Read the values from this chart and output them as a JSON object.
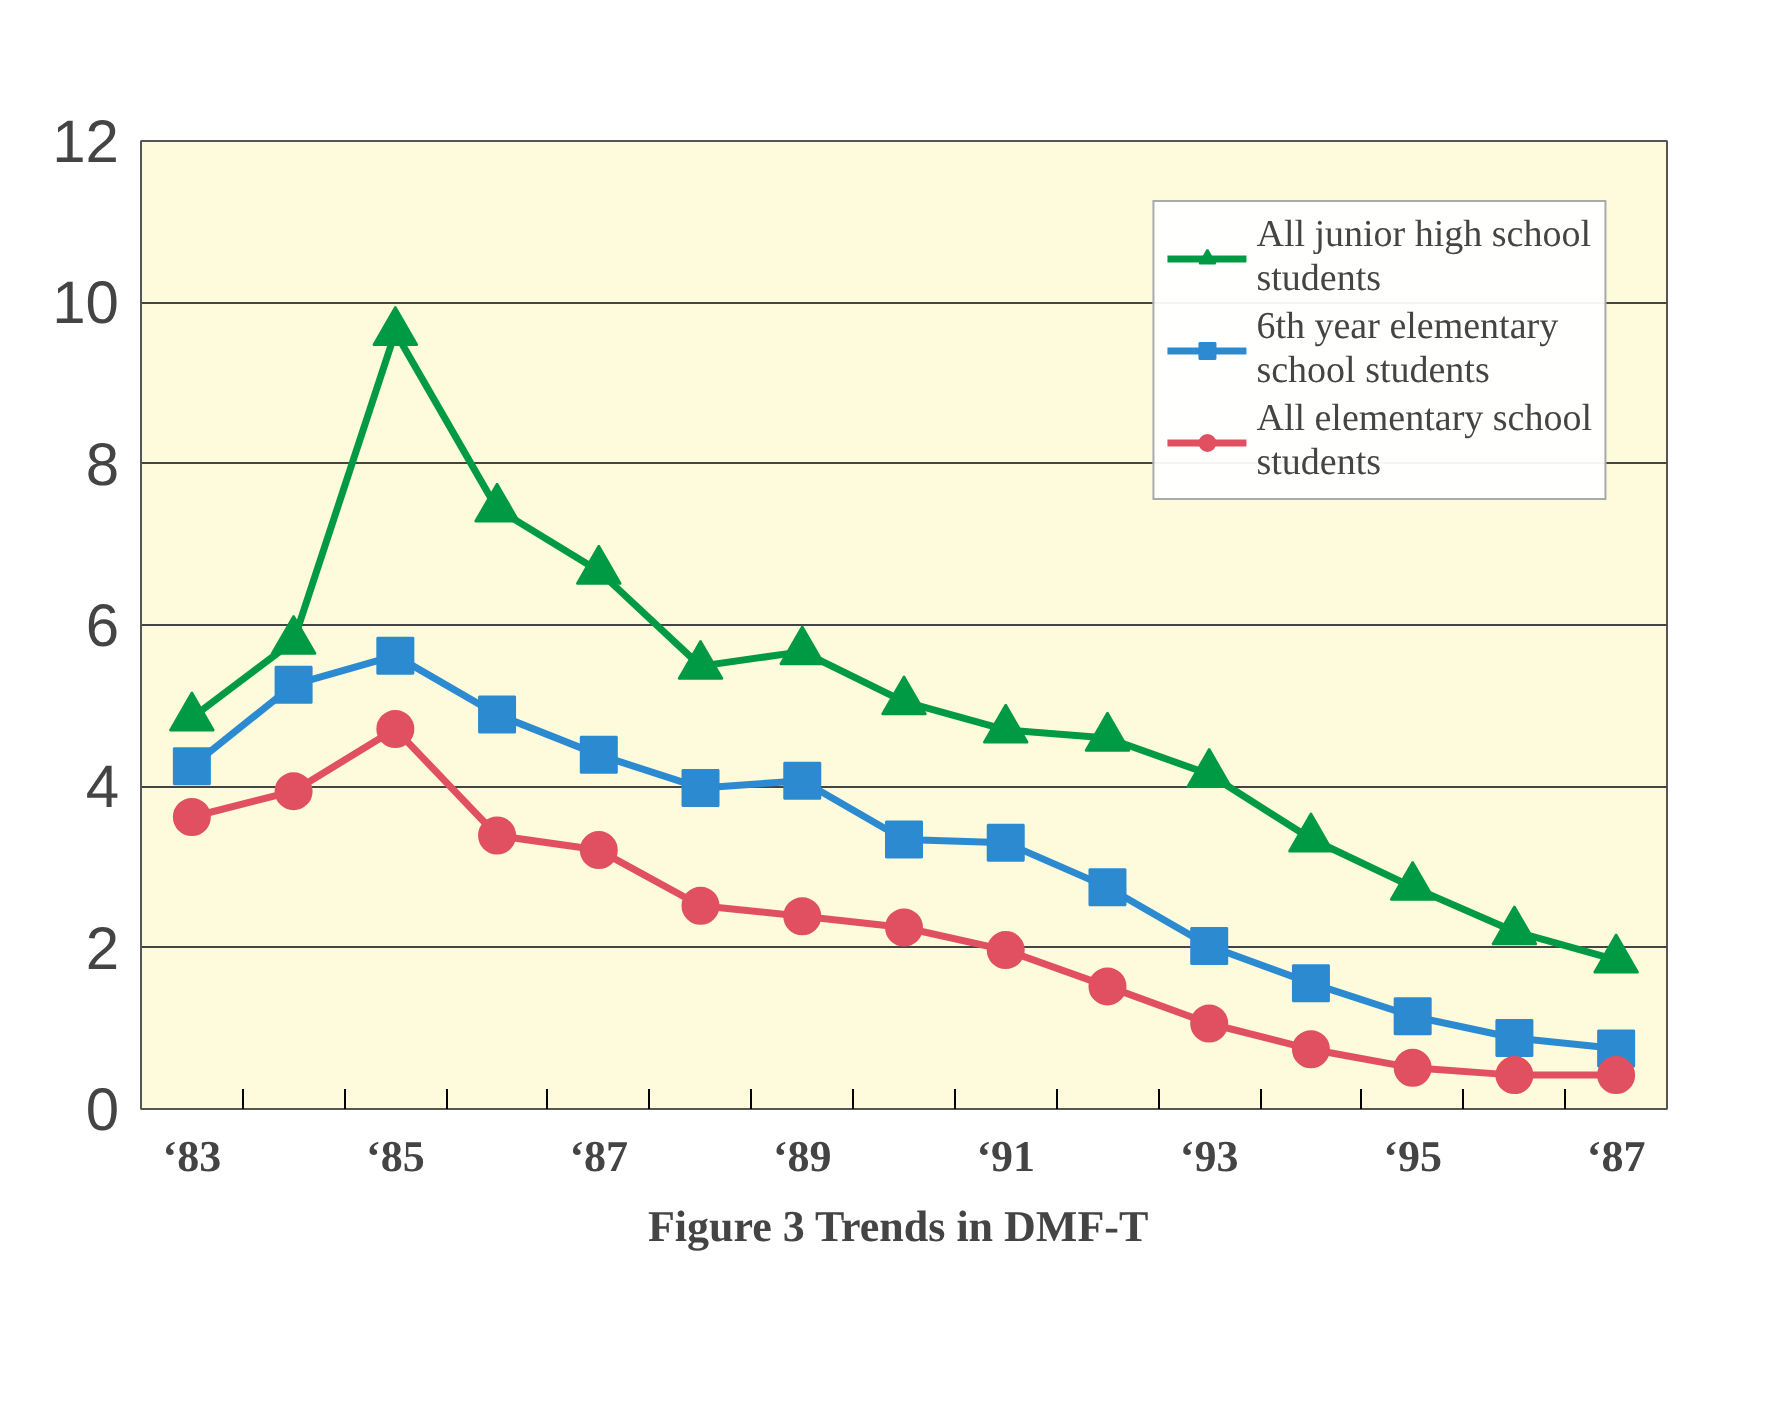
{
  "chart_data": {
    "type": "line",
    "title": "Figure 3  Trends in DMF-T",
    "categories": [
      "‘83",
      null,
      "‘85",
      null,
      "‘87",
      null,
      "‘89",
      null,
      "‘91",
      null,
      "‘93",
      null,
      "‘95",
      null,
      "‘87"
    ],
    "ylim": [
      0,
      12
    ],
    "yticks": [
      0,
      2,
      4,
      6,
      8,
      10,
      12
    ],
    "grid": "y",
    "legend": "top right",
    "line_style": "solid",
    "series": [
      {
        "name": "All junior high school students",
        "color": "#009a44",
        "marker": "triangle",
        "values": [
          4.85,
          5.8,
          9.63,
          7.44,
          6.67,
          5.49,
          5.67,
          5.05,
          4.7,
          4.6,
          4.15,
          3.35,
          2.75,
          2.2,
          1.85
        ]
      },
      {
        "name": "6th year elementary school students",
        "color": "#2b8ad0",
        "marker": "square",
        "values": [
          4.25,
          5.26,
          5.62,
          4.89,
          4.39,
          3.98,
          4.07,
          3.34,
          3.3,
          2.75,
          2.02,
          1.56,
          1.15,
          0.88,
          0.75
        ]
      },
      {
        "name": "All elementary school students",
        "color": "#e05060",
        "marker": "circle",
        "values": [
          3.62,
          3.94,
          4.71,
          3.39,
          3.21,
          2.52,
          2.39,
          2.25,
          1.97,
          1.52,
          1.06,
          0.74,
          0.51,
          0.42,
          0.42
        ]
      }
    ]
  }
}
